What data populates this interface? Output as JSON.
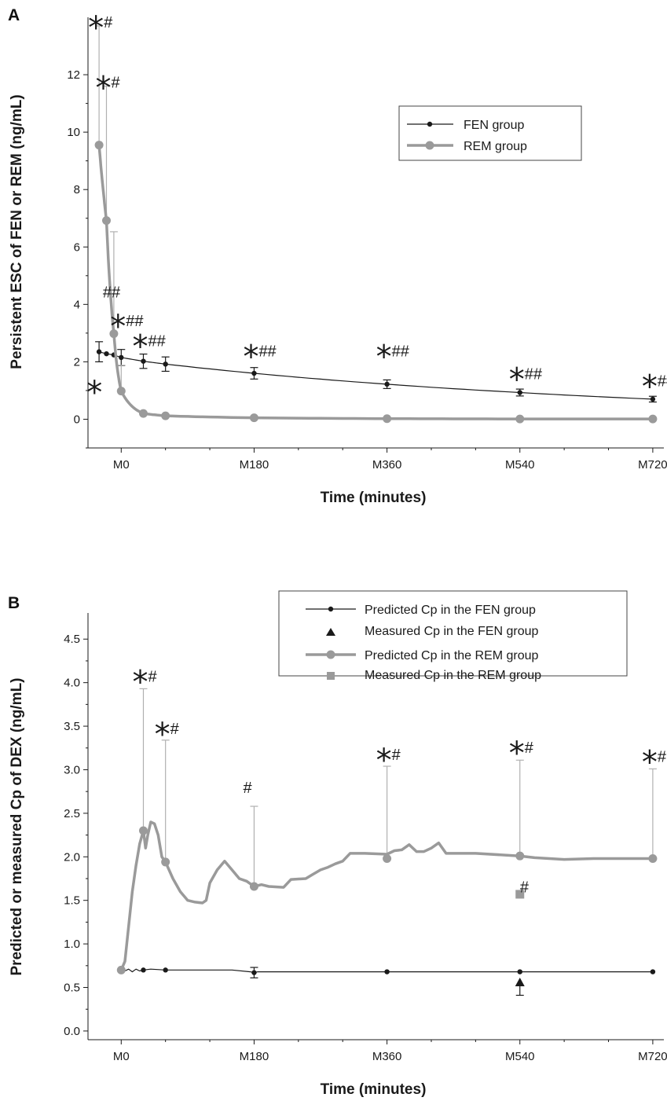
{
  "chart_data": [
    {
      "panel_label": "A",
      "type": "line",
      "xlabel": "Time (minutes)",
      "ylabel": "Persistent ESC of FEN or REM (ng/mL)",
      "x_tick_labels": [
        "M0",
        "M180",
        "M360",
        "M540",
        "M720"
      ],
      "x_tick_values": [
        0,
        180,
        360,
        540,
        720
      ],
      "xlim": [
        -45,
        735
      ],
      "ylim": [
        -1,
        14
      ],
      "y_ticks": [
        0,
        2,
        4,
        6,
        8,
        10,
        12
      ],
      "legend_position": "top-right",
      "series": [
        {
          "name": "FEN group",
          "color": "#1a1a1a",
          "points": [
            {
              "x": -30,
              "y": 2.35,
              "err": 0.35
            },
            {
              "x": -20,
              "y": 2.28
            },
            {
              "x": -10,
              "y": 2.24
            },
            {
              "x": 0,
              "y": 2.15,
              "err": 0.28
            },
            {
              "x": 30,
              "y": 2.02,
              "err": 0.25
            },
            {
              "x": 60,
              "y": 1.92,
              "err": 0.25
            },
            {
              "x": 180,
              "y": 1.6,
              "err": 0.2
            },
            {
              "x": 360,
              "y": 1.22,
              "err": 0.15
            },
            {
              "x": 540,
              "y": 0.93,
              "err": 0.12
            },
            {
              "x": 720,
              "y": 0.7,
              "err": 0.1
            }
          ]
        },
        {
          "name": "REM group",
          "color": "#9a9a9a",
          "points": [
            {
              "x": -30,
              "y": 9.55,
              "err": 4.15
            },
            {
              "x": -20,
              "y": 6.92,
              "err": 4.68
            },
            {
              "x": -10,
              "y": 2.98,
              "err": 3.55
            },
            {
              "x": 0,
              "y": 0.98,
              "err": 0.9
            },
            {
              "x": 30,
              "y": 0.2
            },
            {
              "x": 60,
              "y": 0.12
            },
            {
              "x": 180,
              "y": 0.05
            },
            {
              "x": 360,
              "y": 0.02
            },
            {
              "x": 540,
              "y": 0.01
            },
            {
              "x": 720,
              "y": 0.01
            }
          ]
        }
      ],
      "annotations": [
        {
          "x": -30,
          "y": 13.7,
          "star": "*",
          "hash": "#"
        },
        {
          "x": -20,
          "y": 11.6,
          "star": "*",
          "hash": "#"
        },
        {
          "x": -10,
          "y": 4.3,
          "star": "",
          "hash": "##"
        },
        {
          "x": 0,
          "y": 3.3,
          "star": "*",
          "hash": "##"
        },
        {
          "x": 30,
          "y": 2.6,
          "star": "*",
          "hash": "##"
        },
        {
          "x": 180,
          "y": 2.25,
          "star": "*",
          "hash": "##"
        },
        {
          "x": 360,
          "y": 2.25,
          "star": "*",
          "hash": "##"
        },
        {
          "x": 540,
          "y": 1.45,
          "star": "*",
          "hash": "##"
        },
        {
          "x": 720,
          "y": 1.2,
          "star": "*",
          "hash": "##"
        },
        {
          "x": -32,
          "y": 1.0,
          "star": "*",
          "hash": ""
        }
      ]
    },
    {
      "panel_label": "B",
      "type": "line",
      "xlabel": "Time (minutes)",
      "ylabel": "Predicted or measured Cp of DEX (ng/mL)",
      "x_tick_labels": [
        "M0",
        "M180",
        "M360",
        "M540",
        "M720"
      ],
      "x_tick_values": [
        0,
        180,
        360,
        540,
        720
      ],
      "xlim": [
        -45,
        735
      ],
      "ylim": [
        -0.1,
        4.8
      ],
      "y_ticks": [
        0.0,
        0.5,
        1.0,
        1.5,
        2.0,
        2.5,
        3.0,
        3.5,
        4.0,
        4.5
      ],
      "legend_position": "top-right",
      "series": [
        {
          "name": "Predicted Cp in the FEN group",
          "color": "#1a1a1a",
          "line": [
            [
              0,
              0.7
            ],
            [
              5,
              0.69
            ],
            [
              10,
              0.71
            ],
            [
              15,
              0.68
            ],
            [
              20,
              0.71
            ],
            [
              25,
              0.69
            ],
            [
              30,
              0.7
            ],
            [
              40,
              0.71
            ],
            [
              60,
              0.7
            ],
            [
              100,
              0.7
            ],
            [
              150,
              0.7
            ],
            [
              175,
              0.68
            ],
            [
              180,
              0.67
            ],
            [
              185,
              0.68
            ],
            [
              250,
              0.68
            ],
            [
              360,
              0.68
            ],
            [
              450,
              0.68
            ],
            [
              540,
              0.68
            ],
            [
              620,
              0.68
            ],
            [
              720,
              0.68
            ]
          ],
          "points": [
            {
              "x": 0,
              "y": 0.7
            },
            {
              "x": 30,
              "y": 0.7
            },
            {
              "x": 60,
              "y": 0.7
            },
            {
              "x": 180,
              "y": 0.67,
              "err": 0.06
            },
            {
              "x": 360,
              "y": 0.68
            },
            {
              "x": 540,
              "y": 0.68
            },
            {
              "x": 720,
              "y": 0.68
            }
          ]
        },
        {
          "name": "Measured Cp in the FEN group",
          "color": "#1a1a1a",
          "marker": "triangle",
          "points": [
            {
              "x": 540,
              "y": 0.55,
              "err_low": 0.14
            }
          ]
        },
        {
          "name": "Predicted Cp in the REM group",
          "color": "#9a9a9a",
          "line": [
            [
              0,
              0.7
            ],
            [
              5,
              0.8
            ],
            [
              10,
              1.2
            ],
            [
              15,
              1.6
            ],
            [
              20,
              1.9
            ],
            [
              25,
              2.15
            ],
            [
              30,
              2.3
            ],
            [
              33,
              2.1
            ],
            [
              36,
              2.25
            ],
            [
              40,
              2.4
            ],
            [
              45,
              2.38
            ],
            [
              50,
              2.25
            ],
            [
              55,
              2.0
            ],
            [
              60,
              1.94
            ],
            [
              70,
              1.75
            ],
            [
              80,
              1.6
            ],
            [
              90,
              1.5
            ],
            [
              100,
              1.48
            ],
            [
              110,
              1.47
            ],
            [
              115,
              1.5
            ],
            [
              120,
              1.7
            ],
            [
              130,
              1.85
            ],
            [
              140,
              1.95
            ],
            [
              150,
              1.85
            ],
            [
              160,
              1.75
            ],
            [
              170,
              1.72
            ],
            [
              180,
              1.66
            ],
            [
              190,
              1.68
            ],
            [
              200,
              1.66
            ],
            [
              220,
              1.65
            ],
            [
              230,
              1.74
            ],
            [
              250,
              1.75
            ],
            [
              260,
              1.8
            ],
            [
              270,
              1.85
            ],
            [
              280,
              1.88
            ],
            [
              290,
              1.92
            ],
            [
              300,
              1.95
            ],
            [
              310,
              2.04
            ],
            [
              330,
              2.04
            ],
            [
              360,
              2.03
            ],
            [
              370,
              2.07
            ],
            [
              380,
              2.08
            ],
            [
              390,
              2.14
            ],
            [
              400,
              2.06
            ],
            [
              410,
              2.06
            ],
            [
              420,
              2.1
            ],
            [
              430,
              2.16
            ],
            [
              440,
              2.04
            ],
            [
              480,
              2.04
            ],
            [
              540,
              2.01
            ],
            [
              560,
              1.99
            ],
            [
              600,
              1.97
            ],
            [
              640,
              1.98
            ],
            [
              680,
              1.98
            ],
            [
              720,
              1.98
            ]
          ],
          "points": [
            {
              "x": 0,
              "y": 0.7
            },
            {
              "x": 30,
              "y": 2.3,
              "err": 1.63
            },
            {
              "x": 60,
              "y": 1.94,
              "err": 1.4
            },
            {
              "x": 180,
              "y": 1.66,
              "err": 0.92
            },
            {
              "x": 360,
              "y": 1.98,
              "err": 1.06
            },
            {
              "x": 540,
              "y": 2.01,
              "err": 1.1
            },
            {
              "x": 720,
              "y": 1.98,
              "err": 1.03
            }
          ]
        },
        {
          "name": "Measured Cp in the REM group",
          "color": "#9a9a9a",
          "marker": "square",
          "points": [
            {
              "x": 540,
              "y": 1.57
            }
          ]
        }
      ],
      "annotations": [
        {
          "x": 30,
          "y": 4.03,
          "star": "*",
          "hash": "#"
        },
        {
          "x": 60,
          "y": 3.43,
          "star": "*",
          "hash": "#"
        },
        {
          "x": 180,
          "y": 2.75,
          "star": "",
          "hash": "#"
        },
        {
          "x": 360,
          "y": 3.13,
          "star": "*",
          "hash": "#"
        },
        {
          "x": 540,
          "y": 3.21,
          "star": "*",
          "hash": "#"
        },
        {
          "x": 720,
          "y": 3.11,
          "star": "*",
          "hash": "#"
        },
        {
          "x": 555,
          "y": 1.61,
          "star": "",
          "hash": "#"
        }
      ]
    }
  ]
}
